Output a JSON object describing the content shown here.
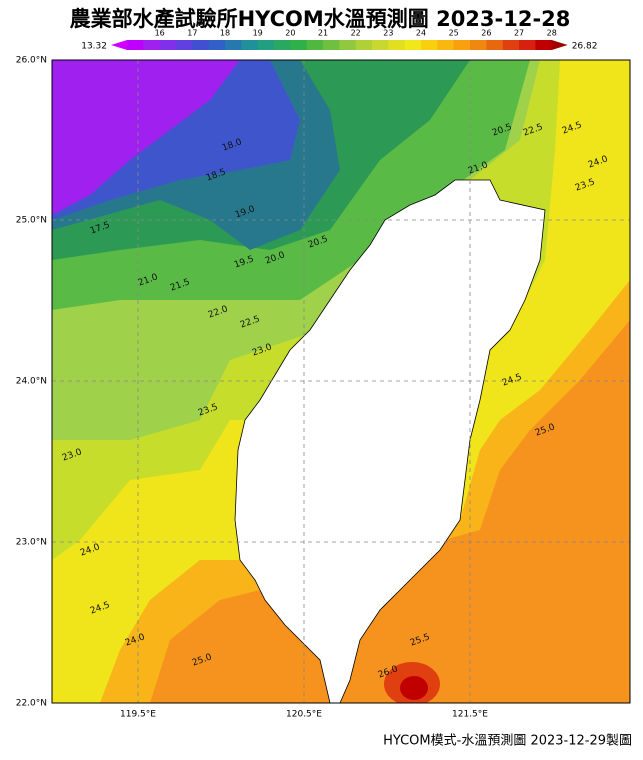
{
  "header": {
    "title": "農業部水產試驗所HYCOM水溫預測圖 2023-12-28"
  },
  "colorbar": {
    "min_label": "13.32",
    "max_label": "26.82",
    "ticks": [
      16,
      17,
      18,
      19,
      20,
      21,
      22,
      23,
      24,
      25,
      26,
      27,
      28
    ],
    "low_color": "#d000ff",
    "high_color": "#a00000",
    "colors": [
      "#c000ff",
      "#a020f0",
      "#8030e8",
      "#6040e0",
      "#4050d0",
      "#3060c8",
      "#2878b0",
      "#20909a",
      "#20a080",
      "#28a860",
      "#30b048",
      "#50b840",
      "#70c040",
      "#90c840",
      "#b0d038",
      "#c8d830",
      "#e0e020",
      "#f0e818",
      "#f8d010",
      "#f8b810",
      "#f8a010",
      "#f08810",
      "#e86810",
      "#e04010",
      "#d82010",
      "#c00000"
    ]
  },
  "axes": {
    "lat_labels": [
      "26.0°N",
      "25.0°N",
      "24.0°N",
      "23.0°N",
      "22.0°N"
    ],
    "lon_labels": [
      "119.5°E",
      "120.5°E",
      "121.5°E"
    ]
  },
  "contour_labels": [
    "18.0",
    "18.5",
    "17.5",
    "19.0",
    "19.5",
    "20.0",
    "20.5",
    "21.0",
    "21.5",
    "22.0",
    "22.5",
    "23.0",
    "23.5",
    "23.0",
    "24.0",
    "24.5",
    "24.0",
    "25.0",
    "24.5",
    "25.0",
    "25.5",
    "26.0",
    "20.5",
    "21.0",
    "22.5",
    "24.5",
    "24.0",
    "23.5"
  ],
  "footer": "HYCOM模式-水溫預測圖 2023-12-29製圖"
}
